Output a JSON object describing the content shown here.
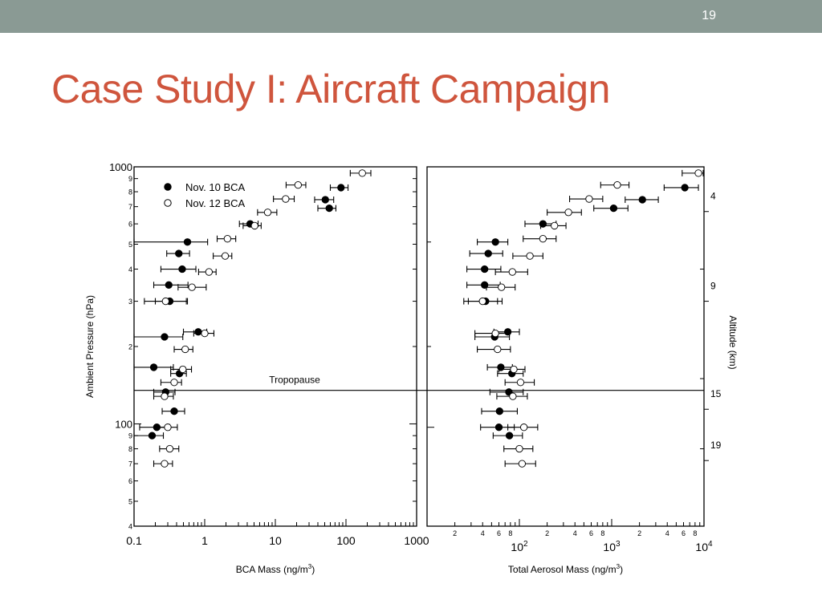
{
  "slide": {
    "number": "19",
    "title": "Case Study I: Aircraft Campaign"
  },
  "colors": {
    "top_bar": "#8a9a94",
    "title": "#cf553d"
  },
  "chart_data": [
    {
      "type": "scatter",
      "xlabel": "BCA Mass (ng/m3)",
      "ylabel": "Ambient Pressure (hPa)",
      "x_scale": "log",
      "y_scale": "log",
      "xlim": [
        0.1,
        1000
      ],
      "ylim": [
        1000,
        40
      ],
      "x_ticks": [
        "0.1",
        "1",
        "10",
        "100",
        "1000"
      ],
      "y_ticks": [
        "1000",
        "100"
      ],
      "y_minor_labels": [
        "4",
        "5",
        "6",
        "7",
        "8",
        "9",
        "2",
        "3",
        "4",
        "5",
        "6",
        "7",
        "8",
        "9"
      ],
      "annotation": "Tropopause",
      "tropopause_hPa": 135,
      "legend": [
        {
          "name": "Nov. 10 BCA",
          "marker": "filled-circle"
        },
        {
          "name": "Nov. 12 BCA",
          "marker": "open-circle"
        }
      ],
      "series": [
        {
          "name": "Nov. 10 BCA",
          "points": [
            {
              "p": 90,
              "x": 0.18,
              "lo": 0.1,
              "hi": 0.26
            },
            {
              "p": 97,
              "x": 0.21,
              "lo": 0.12,
              "hi": 0.32
            },
            {
              "p": 112,
              "x": 0.37,
              "lo": 0.25,
              "hi": 0.52
            },
            {
              "p": 133,
              "x": 0.28,
              "lo": 0.19,
              "hi": 0.38
            },
            {
              "p": 157,
              "x": 0.44,
              "lo": 0.33,
              "hi": 0.55
            },
            {
              "p": 166,
              "x": 0.19,
              "lo": 0.1,
              "hi": 0.36
            },
            {
              "p": 218,
              "x": 0.27,
              "lo": 0.1,
              "hi": 0.49
            },
            {
              "p": 228,
              "x": 0.81,
              "lo": 0.5,
              "hi": 1.07
            },
            {
              "p": 300,
              "x": 0.32,
              "lo": 0.14,
              "hi": 0.57
            },
            {
              "p": 347,
              "x": 0.31,
              "lo": 0.19,
              "hi": 0.58
            },
            {
              "p": 400,
              "x": 0.48,
              "lo": 0.24,
              "hi": 0.75
            },
            {
              "p": 460,
              "x": 0.43,
              "lo": 0.29,
              "hi": 0.61
            },
            {
              "p": 510,
              "x": 0.57,
              "lo": 0.1,
              "hi": 1.1
            },
            {
              "p": 600,
              "x": 4.4,
              "lo": 3.1,
              "hi": 5.7
            },
            {
              "p": 690,
              "x": 58,
              "lo": 40,
              "hi": 72
            },
            {
              "p": 745,
              "x": 51,
              "lo": 36,
              "hi": 67
            },
            {
              "p": 830,
              "x": 85,
              "lo": 60,
              "hi": 107
            }
          ]
        },
        {
          "name": "Nov. 12 BCA",
          "points": [
            {
              "p": 70,
              "x": 0.27,
              "lo": 0.19,
              "hi": 0.35
            },
            {
              "p": 80,
              "x": 0.32,
              "lo": 0.23,
              "hi": 0.43
            },
            {
              "p": 97,
              "x": 0.3,
              "lo": 0.21,
              "hi": 0.41
            },
            {
              "p": 128,
              "x": 0.27,
              "lo": 0.19,
              "hi": 0.36
            },
            {
              "p": 145,
              "x": 0.37,
              "lo": 0.24,
              "hi": 0.47
            },
            {
              "p": 163,
              "x": 0.49,
              "lo": 0.33,
              "hi": 0.65
            },
            {
              "p": 195,
              "x": 0.53,
              "lo": 0.37,
              "hi": 0.68
            },
            {
              "p": 225,
              "x": 1.0,
              "lo": 0.7,
              "hi": 1.35
            },
            {
              "p": 300,
              "x": 0.28,
              "lo": 0.2,
              "hi": 0.55
            },
            {
              "p": 340,
              "x": 0.66,
              "lo": 0.42,
              "hi": 1.05
            },
            {
              "p": 390,
              "x": 1.15,
              "lo": 0.82,
              "hi": 1.45
            },
            {
              "p": 450,
              "x": 1.95,
              "lo": 1.32,
              "hi": 2.42
            },
            {
              "p": 525,
              "x": 2.1,
              "lo": 1.5,
              "hi": 2.75
            },
            {
              "p": 590,
              "x": 5.1,
              "lo": 3.5,
              "hi": 6.3
            },
            {
              "p": 665,
              "x": 7.8,
              "lo": 5.6,
              "hi": 10.5
            },
            {
              "p": 750,
              "x": 14,
              "lo": 9.4,
              "hi": 18.5
            },
            {
              "p": 850,
              "x": 21,
              "lo": 14.2,
              "hi": 27
            },
            {
              "p": 945,
              "x": 170,
              "lo": 115,
              "hi": 225
            }
          ]
        }
      ]
    },
    {
      "type": "scatter",
      "xlabel": "Total Aerosol Mass (ng/m3)",
      "ylabel": "Altitude (km)",
      "x_scale": "log",
      "xlim": [
        10,
        10000
      ],
      "x_ticks": [
        "10^2",
        "10^3",
        "10^4"
      ],
      "x_minor_labels": [
        "2",
        "4",
        "6",
        "8",
        "2",
        "4",
        "6",
        "8",
        "2",
        "4",
        "6",
        "8"
      ],
      "y_ticks": [
        "19",
        "15",
        "9",
        "4"
      ],
      "series": [
        {
          "name": "Nov. 10 BCA",
          "points": [
            {
              "p": 90,
              "x": 78,
              "lo": 52,
              "hi": 108
            },
            {
              "p": 97,
              "x": 60,
              "lo": 38,
              "hi": 88
            },
            {
              "p": 112,
              "x": 61,
              "lo": 39,
              "hi": 95
            },
            {
              "p": 133,
              "x": 77,
              "lo": 48,
              "hi": 110
            },
            {
              "p": 157,
              "x": 83,
              "lo": 58,
              "hi": 110
            },
            {
              "p": 166,
              "x": 63,
              "lo": 45,
              "hi": 84
            },
            {
              "p": 218,
              "x": 54,
              "lo": 33,
              "hi": 78
            },
            {
              "p": 228,
              "x": 75,
              "lo": 53,
              "hi": 100
            },
            {
              "p": 300,
              "x": 43,
              "lo": 25,
              "hi": 65
            },
            {
              "p": 347,
              "x": 42,
              "lo": 27,
              "hi": 62
            },
            {
              "p": 400,
              "x": 42,
              "lo": 27,
              "hi": 63
            },
            {
              "p": 460,
              "x": 46,
              "lo": 29,
              "hi": 66
            },
            {
              "p": 510,
              "x": 55,
              "lo": 35,
              "hi": 75
            },
            {
              "p": 600,
              "x": 180,
              "lo": 115,
              "hi": 250
            },
            {
              "p": 690,
              "x": 1050,
              "lo": 640,
              "hi": 1500
            },
            {
              "p": 745,
              "x": 2150,
              "lo": 1400,
              "hi": 3200
            },
            {
              "p": 830,
              "x": 6200,
              "lo": 3700,
              "hi": 8700
            }
          ]
        },
        {
          "name": "Nov. 12 BCA",
          "points": [
            {
              "p": 70,
              "x": 107,
              "lo": 70,
              "hi": 150
            },
            {
              "p": 80,
              "x": 100,
              "lo": 68,
              "hi": 140
            },
            {
              "p": 97,
              "x": 112,
              "lo": 75,
              "hi": 158
            },
            {
              "p": 128,
              "x": 85,
              "lo": 57,
              "hi": 122
            },
            {
              "p": 145,
              "x": 103,
              "lo": 70,
              "hi": 145
            },
            {
              "p": 163,
              "x": 87,
              "lo": 60,
              "hi": 115
            },
            {
              "p": 195,
              "x": 58,
              "lo": 35,
              "hi": 80
            },
            {
              "p": 225,
              "x": 55,
              "lo": 33,
              "hi": 78
            },
            {
              "p": 300,
              "x": 40,
              "lo": 28,
              "hi": 58
            },
            {
              "p": 340,
              "x": 64,
              "lo": 44,
              "hi": 90
            },
            {
              "p": 390,
              "x": 84,
              "lo": 55,
              "hi": 123
            },
            {
              "p": 450,
              "x": 130,
              "lo": 85,
              "hi": 180
            },
            {
              "p": 525,
              "x": 180,
              "lo": 110,
              "hi": 250
            },
            {
              "p": 590,
              "x": 240,
              "lo": 170,
              "hi": 320
            },
            {
              "p": 665,
              "x": 340,
              "lo": 200,
              "hi": 470
            },
            {
              "p": 750,
              "x": 570,
              "lo": 350,
              "hi": 800
            },
            {
              "p": 850,
              "x": 1150,
              "lo": 760,
              "hi": 1540
            },
            {
              "p": 945,
              "x": 8700,
              "lo": 5800,
              "hi": 9800
            }
          ]
        }
      ]
    }
  ]
}
